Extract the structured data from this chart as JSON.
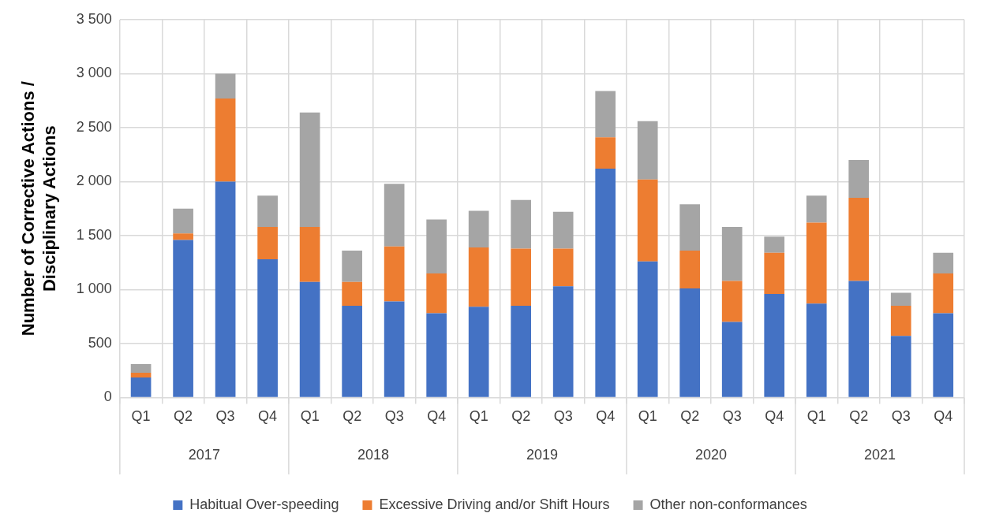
{
  "chart_data": {
    "type": "bar",
    "stacked": true,
    "ylabel": "Number of Corrective Actions / Disciplinary Actions",
    "categories": [
      "Q1",
      "Q2",
      "Q3",
      "Q4",
      "Q1",
      "Q2",
      "Q3",
      "Q4",
      "Q1",
      "Q2",
      "Q3",
      "Q4",
      "Q1",
      "Q2",
      "Q3",
      "Q4",
      "Q1",
      "Q2",
      "Q3",
      "Q4"
    ],
    "annotations": [
      "2017",
      "2018",
      "2019",
      "2020",
      "2021"
    ],
    "series": [
      {
        "name": "Habitual Over-speeding",
        "color": "#4472c4",
        "values": [
          185,
          1460,
          2000,
          1280,
          1070,
          850,
          890,
          780,
          840,
          850,
          1030,
          2120,
          1260,
          1010,
          700,
          960,
          870,
          1080,
          570,
          780
        ]
      },
      {
        "name": "Excessive Driving and/or Shift Hours",
        "color": "#ed7d31",
        "values": [
          45,
          60,
          770,
          300,
          510,
          220,
          510,
          370,
          550,
          530,
          350,
          290,
          760,
          350,
          380,
          380,
          750,
          770,
          280,
          370
        ]
      },
      {
        "name": "Other non-conformances",
        "color": "#a5a5a5",
        "values": [
          80,
          230,
          230,
          290,
          1060,
          290,
          580,
          500,
          340,
          450,
          340,
          430,
          540,
          430,
          500,
          150,
          250,
          350,
          120,
          190
        ]
      }
    ],
    "ylim": [
      0,
      3500
    ],
    "yticks": [
      0,
      500,
      {
        "value": 1000,
        "label": "1 000"
      },
      {
        "value": 1500,
        "label": "1 500"
      },
      {
        "value": 2000,
        "label": "2 000"
      },
      {
        "value": 2500,
        "label": "2 500"
      },
      {
        "value": 3000,
        "label": "3 000"
      },
      {
        "value": 3500,
        "label": "3 500"
      }
    ],
    "grid": true,
    "legend": "bottom"
  }
}
